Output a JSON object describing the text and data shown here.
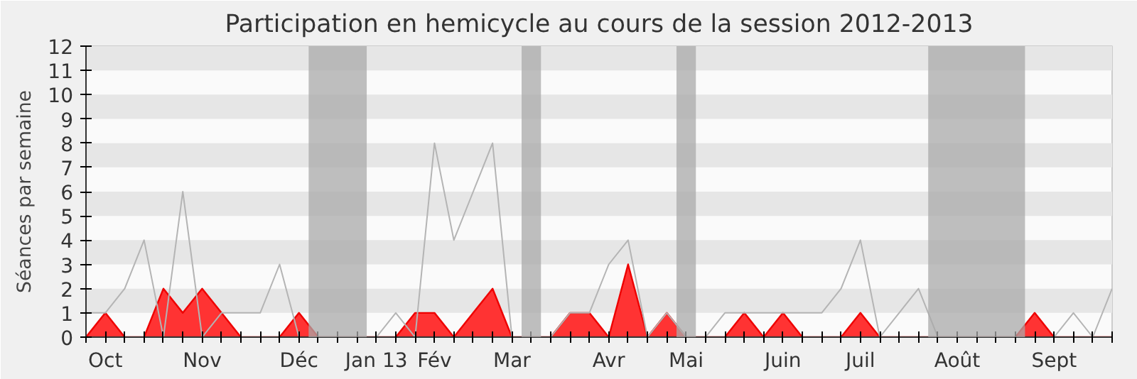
{
  "chart_data": {
    "type": "line",
    "title": "Participation en hemicycle au cours de la session 2012-2013",
    "ylabel": "Séances par semaine",
    "categories": [
      null,
      "Oct",
      null,
      null,
      null,
      null,
      "Nov",
      null,
      null,
      null,
      null,
      "Déc",
      null,
      null,
      null,
      "Jan 13",
      null,
      null,
      "Fév",
      null,
      null,
      null,
      "Mar",
      null,
      null,
      null,
      null,
      "Avr",
      null,
      null,
      null,
      "Mai",
      null,
      null,
      null,
      null,
      "Juin",
      null,
      null,
      null,
      "Juil",
      null,
      null,
      null,
      null,
      "Août",
      null,
      null,
      null,
      null,
      "Sept",
      null,
      null,
      null
    ],
    "series": [
      {
        "color": "#b4b4b4",
        "values": [
          1,
          1,
          2,
          4,
          0,
          6,
          0,
          1,
          1,
          1,
          3,
          0,
          0,
          0,
          0,
          0,
          1,
          0,
          8,
          4,
          6,
          8,
          0,
          0,
          0,
          1,
          1,
          3,
          4,
          0,
          1,
          0,
          0,
          1,
          1,
          1,
          1,
          1,
          1,
          2,
          4,
          0,
          1,
          2,
          0,
          0,
          0,
          0,
          0,
          0,
          0,
          1,
          0,
          2
        ]
      },
      {
        "type": "area",
        "color": "#ff3333",
        "values": [
          0,
          1,
          0,
          0,
          2,
          1,
          2,
          1,
          0,
          0,
          0,
          1,
          0,
          0,
          0,
          0,
          0,
          1,
          1,
          0,
          1,
          2,
          0,
          0,
          0,
          1,
          1,
          0,
          3,
          0,
          1,
          0,
          0,
          0,
          1,
          0,
          1,
          0,
          0,
          0,
          1,
          0,
          0,
          0,
          0,
          0,
          0,
          0,
          0,
          1,
          0,
          0,
          0,
          0
        ]
      }
    ],
    "ylim": [
      0,
      12
    ],
    "yticks": [
      0,
      1,
      2,
      3,
      4,
      5,
      6,
      7,
      8,
      9,
      10,
      11,
      12
    ]
  }
}
